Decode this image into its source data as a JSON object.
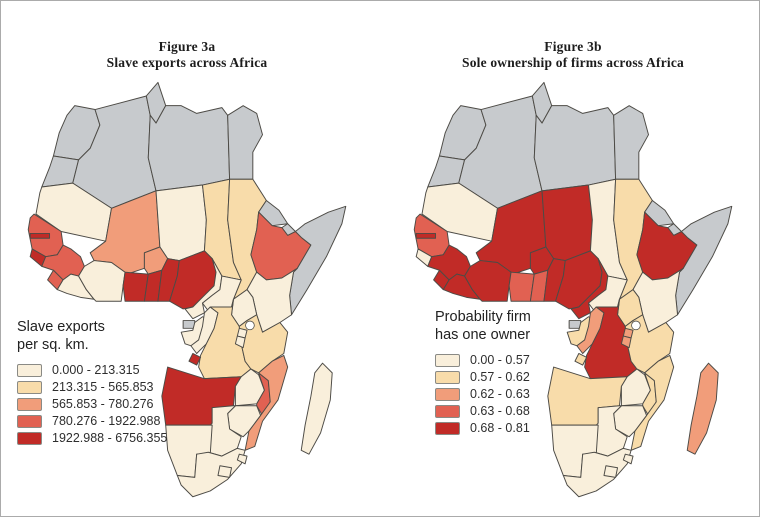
{
  "palette": {
    "classes": [
      "#f9efdb",
      "#f8dcaa",
      "#f19d7a",
      "#e16152",
      "#c12b27"
    ],
    "nodata": "#c7cacd",
    "stroke": "#4d4b46",
    "ocean": "#ffffff",
    "frame_border": "#ababab"
  },
  "figures": [
    {
      "title_line1": "Figure 3a",
      "title_line2": "Slave exports across Africa",
      "legend_title_line1": "Slave exports",
      "legend_title_line2": "per sq. km.",
      "legend": [
        {
          "label": "0.000 - 213.315"
        },
        {
          "label": "213.315 - 565.853"
        },
        {
          "label": "565.853 - 780.276"
        },
        {
          "label": "780.276 - 1922.988"
        },
        {
          "label": "1922.988 - 6756.355"
        }
      ],
      "country_classes": {
        "morocco": "nd",
        "wsahara": "nd",
        "algeria": "nd",
        "tunisia": "nd",
        "libya": "nd",
        "egypt": "nd",
        "mauritania": 1,
        "mali": 3,
        "senegal": 4,
        "gambia": 5,
        "gbissau": 5,
        "guinea": 4,
        "sleone": 4,
        "liberia": 1,
        "civ": 1,
        "burkina": 3,
        "ghana": 5,
        "togo": 5,
        "benin": 5,
        "niger": 1,
        "nigeria": 5,
        "chad": 2,
        "sudan": 2,
        "eritrea": "nd",
        "djibouti": "nd",
        "ethiopia": 4,
        "somalia": "nd",
        "kenya": 1,
        "uganda": 1,
        "car": 1,
        "cameroon": 1,
        "eqguinea": "nd",
        "gabon": 1,
        "congo": 1,
        "drc": 2,
        "cabinda": 5,
        "angola": 5,
        "zambia": 1,
        "malawi": 4,
        "tanzania": 2,
        "rwanda": 1,
        "burundi": 1,
        "mozambique": 3,
        "zimbabwe": 1,
        "botswana": 1,
        "namibia": 1,
        "southafrica": 1,
        "lesotho": 1,
        "swaziland": 1,
        "madagascar": 1
      }
    },
    {
      "title_line1": "Figure 3b",
      "title_line2": "Sole ownership of firms across Africa",
      "legend_title_line1": "Probability firm",
      "legend_title_line2": "has one owner",
      "legend": [
        {
          "label": "0.00 - 0.57"
        },
        {
          "label": "0.57 - 0.62"
        },
        {
          "label": "0.62 - 0.63"
        },
        {
          "label": "0.63 - 0.68"
        },
        {
          "label": "0.68 - 0.81"
        }
      ],
      "country_classes": {
        "morocco": "nd",
        "wsahara": "nd",
        "algeria": "nd",
        "tunisia": "nd",
        "libya": "nd",
        "egypt": "nd",
        "mauritania": 1,
        "mali": 5,
        "senegal": 4,
        "gambia": 5,
        "gbissau": 1,
        "guinea": 5,
        "sleone": 5,
        "liberia": 5,
        "civ": 5,
        "burkina": 5,
        "ghana": 4,
        "togo": 4,
        "benin": 5,
        "niger": 5,
        "nigeria": 5,
        "chad": 1,
        "sudan": 2,
        "eritrea": "nd",
        "djibouti": "nd",
        "ethiopia": 5,
        "somalia": "nd",
        "kenya": 1,
        "uganda": 2,
        "car": 1,
        "cameroon": 5,
        "eqguinea": "nd",
        "gabon": 2,
        "congo": 3,
        "drc": 5,
        "cabinda": 2,
        "angola": 2,
        "zambia": 1,
        "malawi": 2,
        "tanzania": 2,
        "rwanda": 3,
        "burundi": 3,
        "mozambique": 2,
        "zimbabwe": 1,
        "botswana": 1,
        "namibia": 1,
        "southafrica": 1,
        "lesotho": 1,
        "swaziland": 1,
        "madagascar": 3
      }
    }
  ]
}
